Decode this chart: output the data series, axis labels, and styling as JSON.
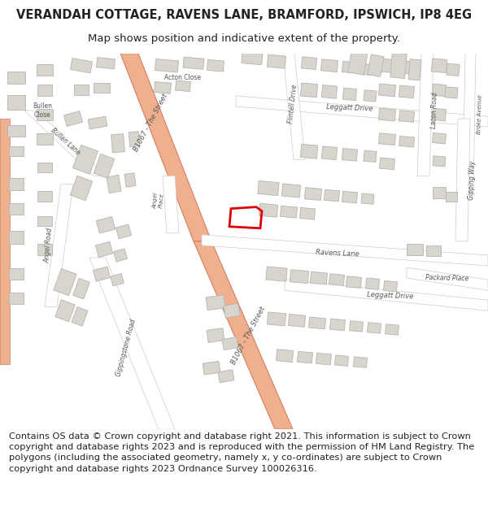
{
  "title_line1": "VERANDAH COTTAGE, RAVENS LANE, BRAMFORD, IPSWICH, IP8 4EG",
  "title_line2": "Map shows position and indicative extent of the property.",
  "copyright_text": "Contains OS data © Crown copyright and database right 2021. This information is subject to Crown copyright and database rights 2023 and is reproduced with the permission of HM Land Registry. The polygons (including the associated geometry, namely x, y co-ordinates) are subject to Crown copyright and database rights 2023 Ordnance Survey 100026316.",
  "bg_color": "#ffffff",
  "map_bg": "#f5f3f0",
  "road_color_main": "#f0b090",
  "road_color_minor": "#ffffff",
  "road_outline": "#cccccc",
  "building_color": "#d8d4ce",
  "building_outline": "#b8b4ae",
  "plot_outline_color": "#dd0000",
  "text_color": "#222222",
  "road_text_color": "#555555",
  "title_fontsize": 10.5,
  "subtitle_fontsize": 9.5,
  "copyright_fontsize": 8.2
}
